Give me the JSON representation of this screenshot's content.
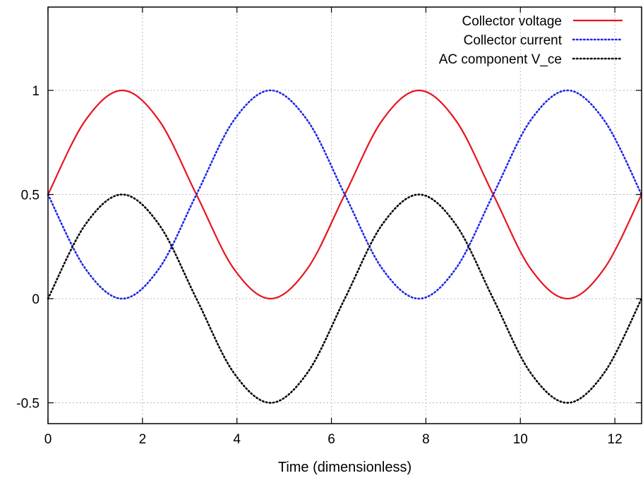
{
  "chart_data": {
    "type": "line",
    "xlabel": "Time (dimensionless)",
    "ylabel": "",
    "xlim": [
      0,
      12.566
    ],
    "ylim": [
      -0.6,
      1.4
    ],
    "xticks": [
      0,
      2,
      4,
      6,
      8,
      10,
      12
    ],
    "yticks": [
      -0.5,
      0,
      0.5,
      1
    ],
    "xtick_labels": [
      "0",
      "2",
      "4",
      "6",
      "8",
      "10",
      "12"
    ],
    "ytick_labels": [
      "-0.5",
      "0",
      "0.5",
      "1"
    ],
    "grid": true,
    "legend_position": "top-right",
    "x": [
      0,
      0.785,
      1.571,
      2.356,
      3.142,
      3.927,
      4.712,
      5.498,
      6.283,
      7.069,
      7.854,
      8.639,
      9.425,
      10.21,
      10.996,
      11.781,
      12.566
    ],
    "series": [
      {
        "name": "Collector voltage",
        "color": "#e8141e",
        "style": "solid",
        "values": [
          0.5,
          0.854,
          1.0,
          0.854,
          0.5,
          0.146,
          0.0,
          0.146,
          0.5,
          0.854,
          1.0,
          0.854,
          0.5,
          0.146,
          0.0,
          0.146,
          0.5
        ]
      },
      {
        "name": "Collector current",
        "color": "#1e28e6",
        "style": "dotted",
        "values": [
          0.5,
          0.146,
          0.0,
          0.146,
          0.5,
          0.854,
          1.0,
          0.854,
          0.5,
          0.146,
          0.0,
          0.146,
          0.5,
          0.854,
          1.0,
          0.854,
          0.5
        ]
      },
      {
        "name": "AC component V_ce",
        "color": "#000000",
        "style": "dotted",
        "values": [
          0.0,
          0.354,
          0.5,
          0.354,
          0.0,
          -0.354,
          -0.5,
          -0.354,
          0.0,
          0.354,
          0.5,
          0.354,
          0.0,
          -0.354,
          -0.5,
          -0.354,
          0.0
        ]
      }
    ]
  }
}
